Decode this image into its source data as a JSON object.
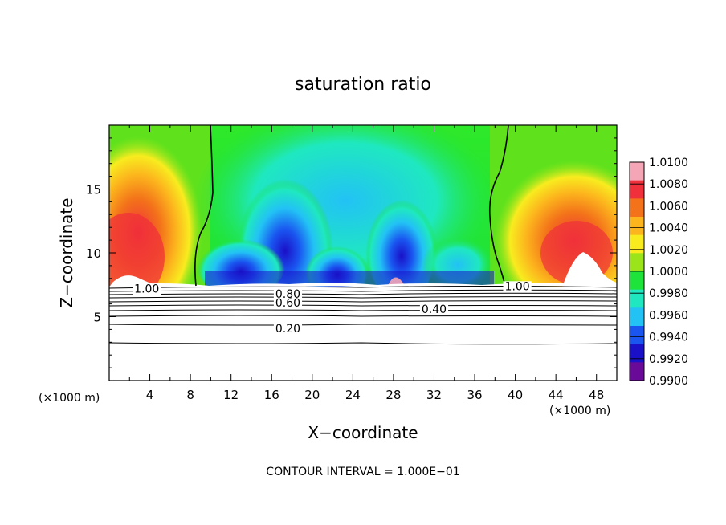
{
  "chart_data": {
    "type": "heatmap",
    "title": "saturation ratio",
    "xlabel": "X−coordinate",
    "ylabel": "Z−coordinate",
    "x_unit_left": "(×1000 m)",
    "x_unit_right": "(×1000 m)",
    "footer": "CONTOUR INTERVAL = 1.000E−01",
    "xlim": [
      0,
      50
    ],
    "ylim": [
      0,
      20
    ],
    "x_ticks": [
      "4",
      "8",
      "12",
      "16",
      "20",
      "24",
      "28",
      "32",
      "36",
      "40",
      "44",
      "48"
    ],
    "y_ticks": [
      "5",
      "10",
      "15"
    ],
    "x_tick_values": [
      4,
      8,
      12,
      16,
      20,
      24,
      28,
      32,
      36,
      40,
      44,
      48
    ],
    "y_tick_values": [
      5,
      10,
      15
    ],
    "colorbar": {
      "labels": [
        "1.0100",
        "1.0080",
        "1.0060",
        "1.0040",
        "1.0020",
        "1.0000",
        "0.9980",
        "0.9960",
        "0.9940",
        "0.9920",
        "0.9900"
      ],
      "colors": [
        "#f5a6b6",
        "#f0303a",
        "#f3721a",
        "#fcb51d",
        "#f8ec1f",
        "#9be41a",
        "#1de33a",
        "#1fe8c0",
        "#22c2f5",
        "#1a55f0",
        "#1a10c8",
        "#6a0a98"
      ]
    },
    "contour_labels": [
      {
        "text": "1.00",
        "x": 3.7,
        "z": 7.2
      },
      {
        "text": "0.80",
        "x": 17.6,
        "z": 6.8
      },
      {
        "text": "0.60",
        "x": 17.6,
        "z": 6.1
      },
      {
        "text": "0.40",
        "x": 32.0,
        "z": 5.6
      },
      {
        "text": "0.20",
        "x": 17.6,
        "z": 4.1
      },
      {
        "text": "1.00",
        "x": 40.2,
        "z": 7.4
      }
    ]
  }
}
